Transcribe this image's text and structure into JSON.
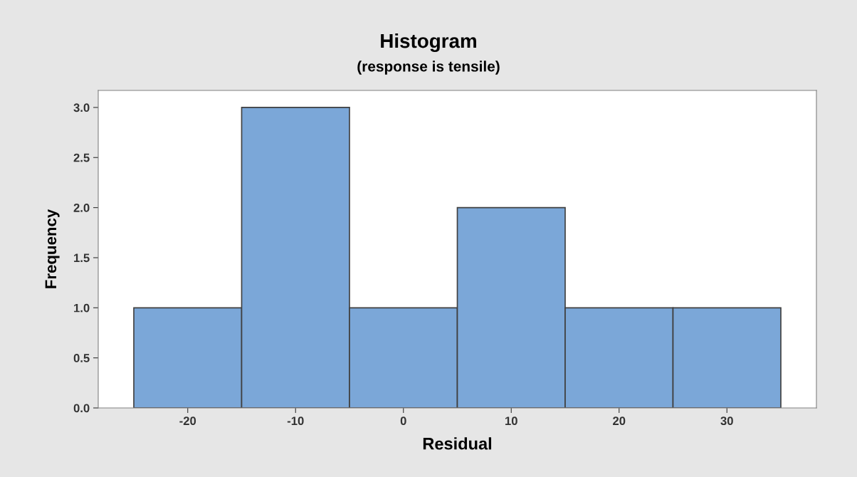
{
  "chart_data": {
    "type": "histogram",
    "title": "Histogram",
    "subtitle": "(response is tensile)",
    "xlabel": "Residual",
    "ylabel": "Frequency",
    "bins": [
      -25,
      -15,
      -5,
      5,
      15,
      25,
      35
    ],
    "values": [
      1,
      3,
      1,
      2,
      1,
      1
    ],
    "color": "#7ba7d8",
    "xlim": [
      -28.3,
      38.3
    ],
    "xticks": [
      -20,
      -10,
      0,
      10,
      20,
      30
    ],
    "ylim": [
      0,
      3.17
    ],
    "yticks": [
      {
        "value": 0,
        "label": "0.0"
      },
      {
        "value": 0.5,
        "label": "0.5"
      },
      {
        "value": 1,
        "label": "1.0"
      },
      {
        "value": 1.5,
        "label": "1.5"
      },
      {
        "value": 2,
        "label": "2.0"
      },
      {
        "value": 2.5,
        "label": "2.5"
      },
      {
        "value": 3,
        "label": "3.0"
      }
    ],
    "grid": false,
    "legend": false
  }
}
